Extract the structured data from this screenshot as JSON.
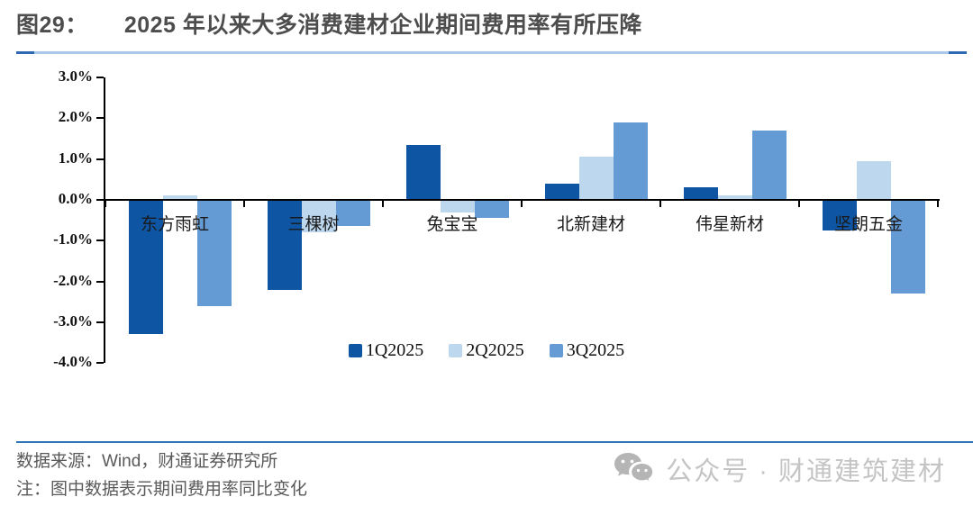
{
  "header": {
    "figure_label": "图29：",
    "title": "2025 年以来大多消费建材企业期间费用率有所压降"
  },
  "chart_data": {
    "type": "bar",
    "title": "2025 年以来大多消费建材企业期间费用率有所压降",
    "xlabel": "",
    "ylabel": "",
    "unit": "%",
    "ylim": [
      -4.0,
      3.0
    ],
    "grid": false,
    "legend_position": "bottom",
    "yticks": [
      {
        "value": 3,
        "label": "3.0%"
      },
      {
        "value": 2,
        "label": "2.0%"
      },
      {
        "value": 1,
        "label": "1.0%"
      },
      {
        "value": 0,
        "label": "0.0%"
      },
      {
        "value": -1,
        "label": "-1.0%"
      },
      {
        "value": -2,
        "label": "-2.0%"
      },
      {
        "value": -3,
        "label": "-3.0%"
      },
      {
        "value": -4,
        "label": "-4.0%"
      }
    ],
    "categories": [
      "东方雨虹",
      "三棵树",
      "兔宝宝",
      "北新建材",
      "伟星新材",
      "坚朗五金"
    ],
    "series": [
      {
        "name": "1Q2025",
        "color": "#0e55a4",
        "values": [
          -3.3,
          -2.2,
          1.35,
          0.4,
          0.3,
          -0.75
        ]
      },
      {
        "name": "2Q2025",
        "color": "#bdd7ee",
        "values": [
          0.1,
          -0.8,
          -0.3,
          1.05,
          0.1,
          0.95
        ]
      },
      {
        "name": "3Q2025",
        "color": "#649bd5",
        "values": [
          -2.6,
          -0.65,
          -0.45,
          1.9,
          1.7,
          -2.3
        ]
      }
    ]
  },
  "footer": {
    "source": "数据来源：Wind，财通证券研究所",
    "note": "注：图中数据表示期间费用率同比变化",
    "watermark": "公众号 · 财通建筑建材",
    "wechat_icon": "wechat-icon"
  },
  "colors": {
    "title_text": "#4d4d4d",
    "rule_dark": "#2e68b0",
    "rule_light": "#a9c7e9",
    "footer_rule": "#2e75b6",
    "footer_text": "#595959",
    "watermark_gray": "#c4c4c4"
  }
}
